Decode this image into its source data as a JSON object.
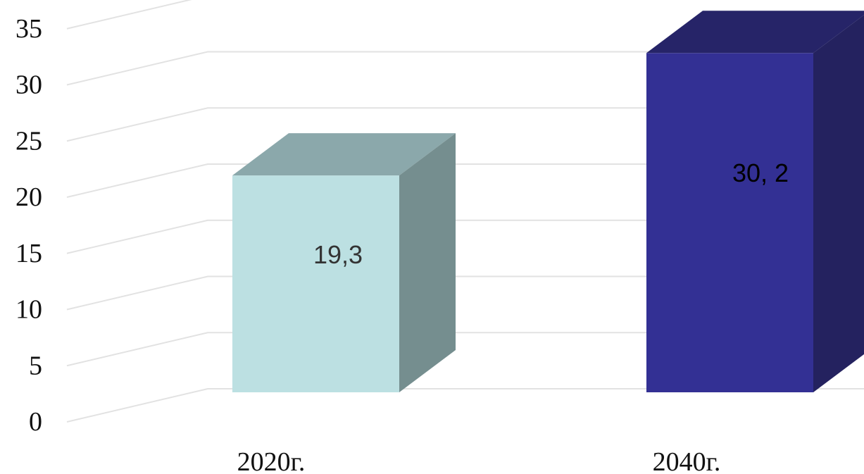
{
  "chart_data": {
    "type": "bar",
    "title": "",
    "xlabel": "",
    "ylabel": "",
    "categories": [
      "2020г.",
      "2040г."
    ],
    "values": [
      19.3,
      30.2
    ],
    "data_labels": [
      "19,3",
      "30, 2"
    ],
    "y_ticks": [
      "0",
      "5",
      "10",
      "15",
      "20",
      "25",
      "30",
      "35"
    ],
    "ylim": [
      0,
      35
    ],
    "grid": true,
    "legend": "none",
    "style": "3d-column",
    "colors": {
      "bars": [
        {
          "front": "#bce0e2",
          "top": "#8ba8ab",
          "side": "#758e8f",
          "label": "#333333"
        },
        {
          "front": "#333094",
          "top": "#262468",
          "side": "#24225f",
          "label": "#000000"
        }
      ],
      "gridline": "#e2e2e2"
    }
  }
}
